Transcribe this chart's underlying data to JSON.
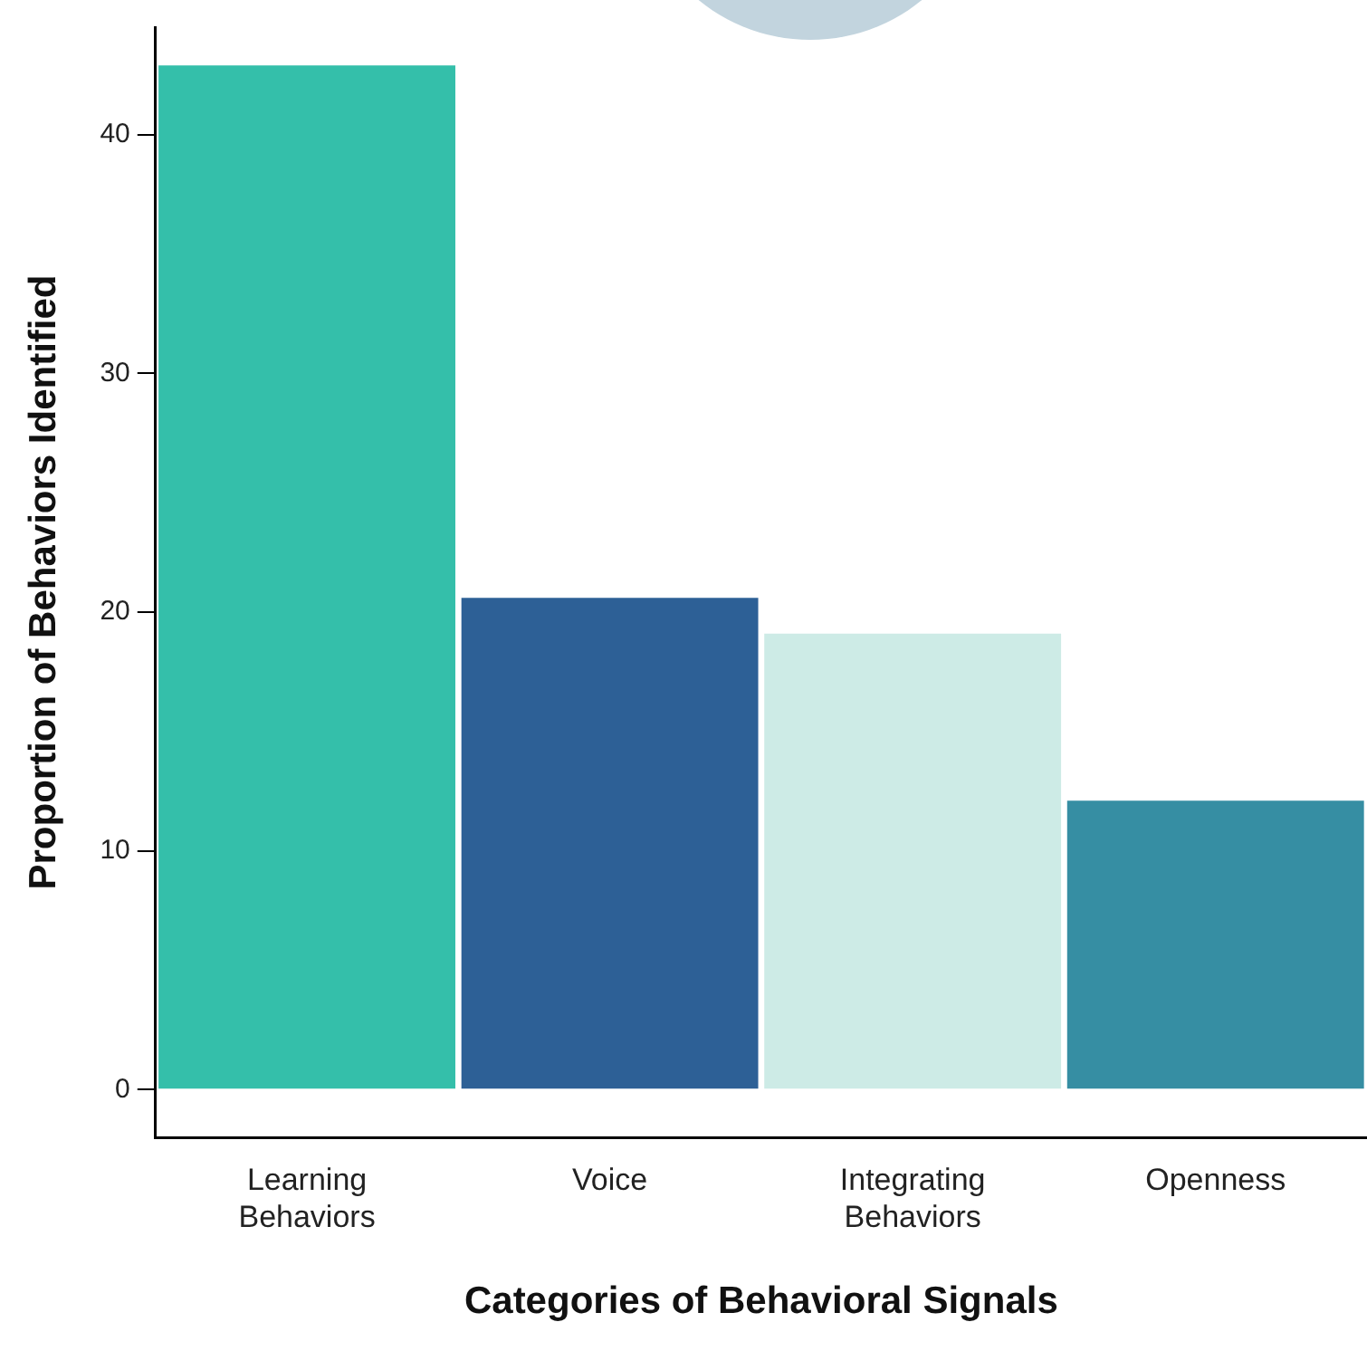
{
  "chart_data": {
    "type": "bar",
    "xlabel": "Categories of Behavioral Signals",
    "ylabel": "Proportion of Behaviors Identified",
    "categories": [
      "Learning Behaviors",
      "Voice",
      "Integrating Behaviors",
      "Openness"
    ],
    "values": [
      42.9,
      20.6,
      19.1,
      12.1
    ],
    "colors": [
      "#34bfaa",
      "#2d6096",
      "#cdebe6",
      "#368ea3"
    ],
    "ylim": [
      -2,
      44.5
    ],
    "yticks": [
      0,
      10,
      20,
      30,
      40
    ],
    "legend": false
  }
}
